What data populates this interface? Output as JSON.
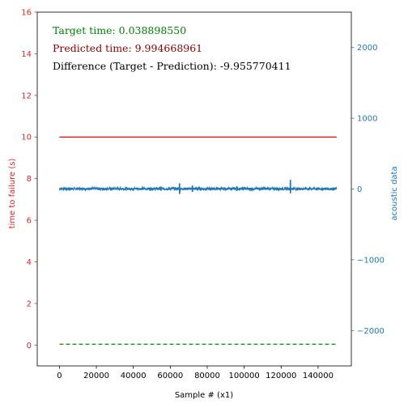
{
  "chart_data": {
    "type": "line",
    "xlabel": "Sample # (x1)",
    "ylabel_left": "time to failure (s)",
    "ylabel_right": "acoustic data",
    "xlim": [
      -12000,
      158000
    ],
    "ylim_left": [
      -1,
      16
    ],
    "ylim_right": [
      -2500,
      2500
    ],
    "x_ticks": [
      0,
      20000,
      40000,
      60000,
      80000,
      100000,
      120000,
      140000
    ],
    "y_left_ticks": [
      0,
      2,
      4,
      6,
      8,
      10,
      12,
      14,
      16
    ],
    "y_right_ticks": [
      -2000,
      -1000,
      0,
      1000,
      2000
    ],
    "y_right_tick_labels": [
      "−2000",
      "−1000",
      "0",
      "1000",
      "2000"
    ],
    "series": [
      {
        "axis": "left",
        "color": "#d62728",
        "style": "solid",
        "x": [
          0,
          150000
        ],
        "y": [
          9.994668961,
          9.994668961
        ]
      },
      {
        "axis": "left",
        "color": "#2ca02c",
        "style": "dashed",
        "x": [
          0,
          150000
        ],
        "y": [
          0.03889855,
          0.03889855
        ]
      },
      {
        "axis": "right",
        "color": "#1f77b4",
        "style": "solid",
        "x_range": [
          0,
          150000
        ],
        "baseline": 4,
        "noise_amplitude": 18,
        "spikes": [
          {
            "x": 55000,
            "min": -25,
            "max": 35
          },
          {
            "x": 65000,
            "min": -70,
            "max": 80
          },
          {
            "x": 72000,
            "min": -40,
            "max": 50
          },
          {
            "x": 96000,
            "min": -30,
            "max": 40
          },
          {
            "x": 125000,
            "min": -60,
            "max": 130
          }
        ]
      }
    ],
    "annotations": [
      {
        "text": "Target time: 0.038898550",
        "color": "#008000"
      },
      {
        "text": "Predicted time: 9.994668961",
        "color": "#8b0000"
      },
      {
        "text": "Difference (Target - Prediction): -9.955770411",
        "color": "#000000"
      }
    ],
    "colors": {
      "left_axis": "#d62728",
      "right_axis": "#1f77b4"
    }
  }
}
